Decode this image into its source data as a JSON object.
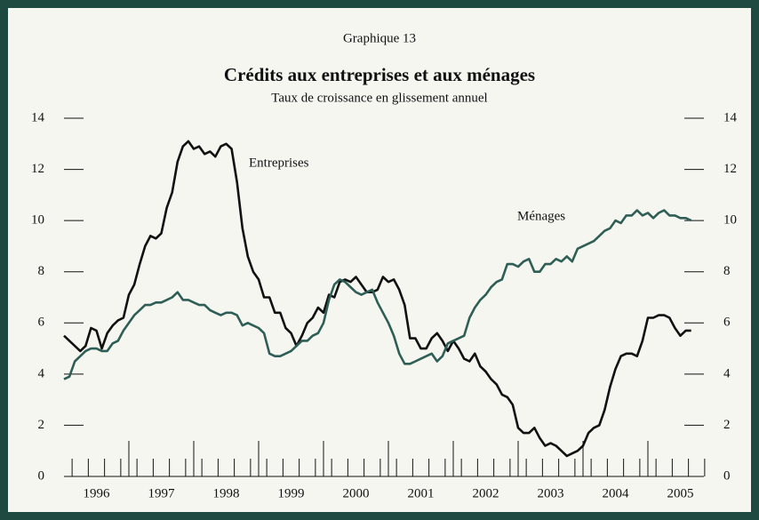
{
  "chart_data": {
    "type": "line",
    "header": "Graphique 13",
    "title": "Crédits aux entreprises et aux ménages",
    "subtitle": "Taux de croissance en glissement annuel",
    "categories": [
      null,
      null,
      null,
      null,
      null,
      null,
      "1996",
      null,
      null,
      null,
      null,
      null,
      null,
      null,
      null,
      null,
      null,
      null,
      "1997",
      null,
      null,
      null,
      null,
      null,
      null,
      null,
      null,
      null,
      null,
      null,
      "1998",
      null,
      null,
      null,
      null,
      null,
      null,
      null,
      null,
      null,
      null,
      null,
      "1999",
      null,
      null,
      null,
      null,
      null,
      null,
      null,
      null,
      null,
      null,
      null,
      "2000",
      null,
      null,
      null,
      null,
      null,
      null,
      null,
      null,
      null,
      null,
      null,
      "2001",
      null,
      null,
      null,
      null,
      null,
      null,
      null,
      null,
      null,
      null,
      null,
      "2002",
      null,
      null,
      null,
      null,
      null,
      null,
      null,
      null,
      null,
      null,
      null,
      "2003",
      null,
      null,
      null,
      null,
      null,
      null,
      null,
      null,
      null,
      null,
      null,
      "2004",
      null,
      null,
      null,
      null,
      null,
      null,
      null,
      null,
      null,
      null,
      null,
      "2005",
      null,
      null
    ],
    "series": [
      {
        "name": "Entreprises",
        "color": "#111111",
        "values": [
          5.5,
          5.3,
          5.1,
          4.9,
          5.1,
          5.8,
          5.7,
          5.0,
          5.6,
          5.9,
          6.1,
          6.2,
          7.1,
          7.5,
          8.3,
          9.0,
          9.4,
          9.3,
          9.5,
          10.5,
          11.1,
          12.3,
          12.9,
          13.1,
          12.8,
          12.9,
          12.6,
          12.7,
          12.5,
          12.9,
          13.0,
          12.8,
          11.5,
          9.7,
          8.6,
          8.0,
          7.7,
          7.0,
          7.0,
          6.4,
          6.4,
          5.8,
          5.6,
          5.1,
          5.5,
          6.0,
          6.2,
          6.6,
          6.4,
          7.1,
          7.0,
          7.6,
          7.7,
          7.6,
          7.8,
          7.5,
          7.2,
          7.2,
          7.3,
          7.8,
          7.6,
          7.7,
          7.3,
          6.7,
          5.4,
          5.4,
          5.0,
          5.0,
          5.4,
          5.6,
          5.3,
          4.9,
          5.3,
          5.0,
          4.6,
          4.5,
          4.8,
          4.3,
          4.1,
          3.8,
          3.6,
          3.2,
          3.1,
          2.8,
          1.9,
          1.7,
          1.7,
          1.9,
          1.5,
          1.2,
          1.3,
          1.2,
          1.0,
          0.8,
          0.9,
          1.0,
          1.2,
          1.7,
          1.9,
          2.0,
          2.6,
          3.5,
          4.2,
          4.7,
          4.8,
          4.8,
          4.7,
          5.3,
          6.2,
          6.2,
          6.3,
          6.3,
          6.2,
          5.8,
          5.5,
          5.7,
          5.7
        ]
      },
      {
        "name": "Ménages",
        "color": "#2e5e55",
        "values": [
          3.8,
          3.9,
          4.5,
          4.7,
          4.9,
          5.0,
          5.0,
          4.9,
          4.9,
          5.2,
          5.3,
          5.7,
          6.0,
          6.3,
          6.5,
          6.7,
          6.7,
          6.8,
          6.8,
          6.9,
          7.0,
          7.2,
          6.9,
          6.9,
          6.8,
          6.7,
          6.7,
          6.5,
          6.4,
          6.3,
          6.4,
          6.4,
          6.3,
          5.9,
          6.0,
          5.9,
          5.8,
          5.6,
          4.8,
          4.7,
          4.7,
          4.8,
          4.9,
          5.1,
          5.3,
          5.3,
          5.5,
          5.6,
          6.0,
          6.9,
          7.5,
          7.7,
          7.6,
          7.4,
          7.2,
          7.1,
          7.2,
          7.3,
          6.8,
          6.4,
          6.0,
          5.5,
          4.8,
          4.4,
          4.4,
          4.5,
          4.6,
          4.7,
          4.8,
          4.5,
          4.7,
          5.2,
          5.3,
          5.4,
          5.5,
          6.2,
          6.6,
          6.9,
          7.1,
          7.4,
          7.6,
          7.7,
          8.3,
          8.3,
          8.2,
          8.4,
          8.5,
          8.0,
          8.0,
          8.3,
          8.3,
          8.5,
          8.4,
          8.6,
          8.4,
          8.9,
          9.0,
          9.1,
          9.2,
          9.4,
          9.6,
          9.7,
          10.0,
          9.9,
          10.2,
          10.2,
          10.4,
          10.2,
          10.3,
          10.1,
          10.3,
          10.4,
          10.2,
          10.2,
          10.1,
          10.1,
          10.0
        ]
      }
    ],
    "ylim": [
      0,
      14
    ],
    "yticks": [
      0,
      2,
      4,
      6,
      8,
      10,
      12,
      14
    ],
    "y2lim": [
      0,
      14
    ],
    "y2ticks": [
      0,
      2,
      4,
      6,
      8,
      10,
      12,
      14
    ],
    "grid": false
  }
}
